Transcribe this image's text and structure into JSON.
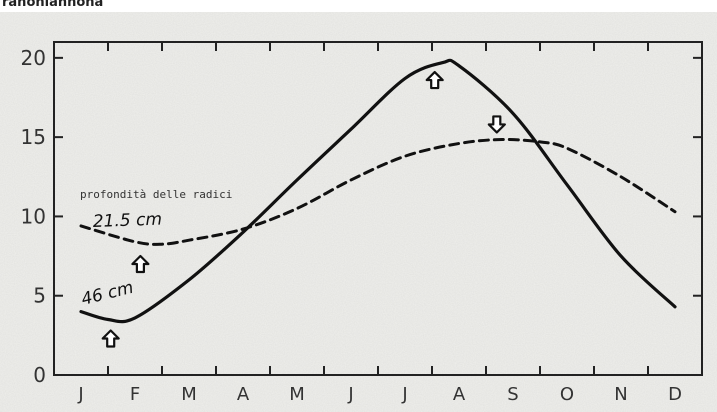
{
  "clipped_title": "ranoniannona",
  "chart_data": {
    "type": "line",
    "x": [
      "J",
      "F",
      "M",
      "A",
      "M",
      "J",
      "J",
      "A",
      "S",
      "O",
      "N",
      "D"
    ],
    "ylim": [
      0,
      21
    ],
    "yticks": [
      "0",
      "5",
      "10",
      "15",
      "20"
    ],
    "grid": false,
    "annotations": {
      "caption": "profondità delle radici",
      "depth_shallow": "21.5 cm",
      "depth_deep": "46 cm"
    },
    "series": [
      {
        "style": "solid",
        "points": [
          [
            0,
            4.0
          ],
          [
            0.5,
            3.5
          ],
          [
            1,
            3.6
          ],
          [
            2,
            6.0
          ],
          [
            3,
            9.0
          ],
          [
            4,
            12.3
          ],
          [
            5,
            15.5
          ],
          [
            6,
            18.7
          ],
          [
            6.7,
            19.7
          ],
          [
            7,
            19.5
          ],
          [
            8,
            16.5
          ],
          [
            9,
            12.0
          ],
          [
            10,
            7.5
          ],
          [
            11,
            4.3
          ]
        ]
      },
      {
        "style": "dashed",
        "points": [
          [
            0,
            9.4
          ],
          [
            1,
            8.4
          ],
          [
            1.5,
            8.25
          ],
          [
            2,
            8.5
          ],
          [
            3,
            9.2
          ],
          [
            4,
            10.5
          ],
          [
            5,
            12.3
          ],
          [
            6,
            13.8
          ],
          [
            7,
            14.6
          ],
          [
            7.8,
            14.85
          ],
          [
            8.5,
            14.7
          ],
          [
            9,
            14.3
          ],
          [
            10,
            12.5
          ],
          [
            11,
            10.3
          ]
        ]
      }
    ],
    "markers": [
      {
        "x": 0.55,
        "y": 2.3,
        "direction": "up"
      },
      {
        "x": 1.1,
        "y": 7.0,
        "direction": "up"
      },
      {
        "x": 6.55,
        "y": 18.6,
        "direction": "up"
      },
      {
        "x": 7.7,
        "y": 15.8,
        "direction": "down"
      }
    ]
  }
}
